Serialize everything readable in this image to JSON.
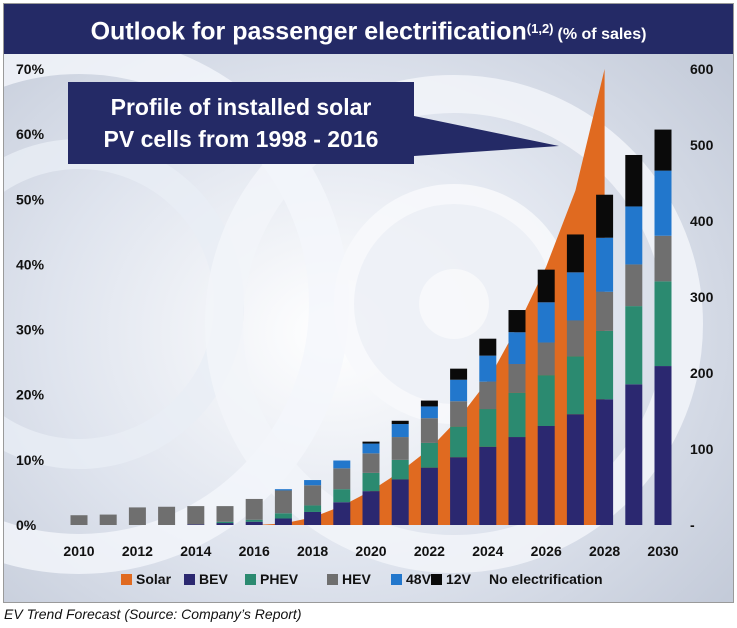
{
  "title": {
    "main": "Outlook for passenger electrification",
    "sup": "(1,2)",
    "unit": "(% of sales)"
  },
  "callout": {
    "line1": "Profile of installed solar",
    "line2": "PV cells from 1998 - 2016"
  },
  "caption": "EV Trend Forecast (Source: Company’s Report)",
  "chart_data": {
    "type": "bar",
    "stacked": true,
    "categories": [
      "2010",
      "2011",
      "2012",
      "2013",
      "2014",
      "2015",
      "2016",
      "2017",
      "2018",
      "2019",
      "2020",
      "2021",
      "2022",
      "2023",
      "2024",
      "2025",
      "2026",
      "2027",
      "2028",
      "2029",
      "2030"
    ],
    "x_tick_labels": [
      "2010",
      "2012",
      "2014",
      "2016",
      "2018",
      "2020",
      "2022",
      "2024",
      "2026",
      "2028",
      "2030"
    ],
    "y_left": {
      "range": [
        0,
        70
      ],
      "ticks": [
        "0%",
        "10%",
        "20%",
        "30%",
        "40%",
        "50%",
        "60%",
        "70%"
      ]
    },
    "y_right": {
      "range": [
        0,
        600
      ],
      "ticks": [
        "-",
        "100",
        "200",
        "300",
        "400",
        "500",
        "600"
      ]
    },
    "series": [
      {
        "name": "BEV",
        "color": "#2b2870",
        "values": [
          0,
          0,
          0,
          0,
          0.1,
          0.3,
          0.5,
          1.0,
          2.0,
          3.5,
          5.2,
          7.0,
          8.8,
          10.4,
          12.0,
          13.5,
          15.2,
          17.0,
          19.3,
          21.6,
          24.4
        ]
      },
      {
        "name": "PHEV",
        "color": "#2b8a70",
        "values": [
          0,
          0,
          0,
          0,
          0,
          0.2,
          0.3,
          0.8,
          1.0,
          2.0,
          2.8,
          3.0,
          3.8,
          4.7,
          5.8,
          6.8,
          7.8,
          8.9,
          10.5,
          12.0,
          13.0
        ]
      },
      {
        "name": "HEV",
        "color": "#6f6f6f",
        "values": [
          1.5,
          1.6,
          2.7,
          2.8,
          2.8,
          2.4,
          3.2,
          3.5,
          3.1,
          3.2,
          3.0,
          3.5,
          3.8,
          3.9,
          4.2,
          4.4,
          5.0,
          5.5,
          6.0,
          6.4,
          7.0
        ]
      },
      {
        "name": "48V",
        "color": "#2277cc",
        "values": [
          0,
          0,
          0,
          0,
          0,
          0,
          0,
          0.2,
          0.8,
          1.2,
          1.5,
          2.0,
          1.8,
          3.3,
          4.0,
          4.9,
          6.2,
          7.4,
          8.3,
          8.9,
          10.0
        ]
      },
      {
        "name": "12V",
        "color": "#0a0a0a",
        "values": [
          0,
          0,
          0,
          0,
          0,
          0,
          0,
          0,
          0,
          0,
          0.3,
          0.5,
          0.9,
          1.7,
          2.6,
          3.4,
          5.0,
          5.8,
          6.6,
          7.9,
          6.3
        ]
      }
    ],
    "solar_area": {
      "name": "Solar",
      "color": "#e06a20",
      "axis": "right",
      "values": [
        0,
        0,
        0,
        0,
        0,
        0,
        0,
        2,
        10,
        25,
        45,
        70,
        100,
        140,
        190,
        260,
        340,
        440,
        600
      ]
    },
    "legend": [
      "Solar",
      "BEV",
      "PHEV",
      "HEV",
      "48V",
      "12V",
      "No electrification"
    ],
    "legend_position": "bottom"
  }
}
